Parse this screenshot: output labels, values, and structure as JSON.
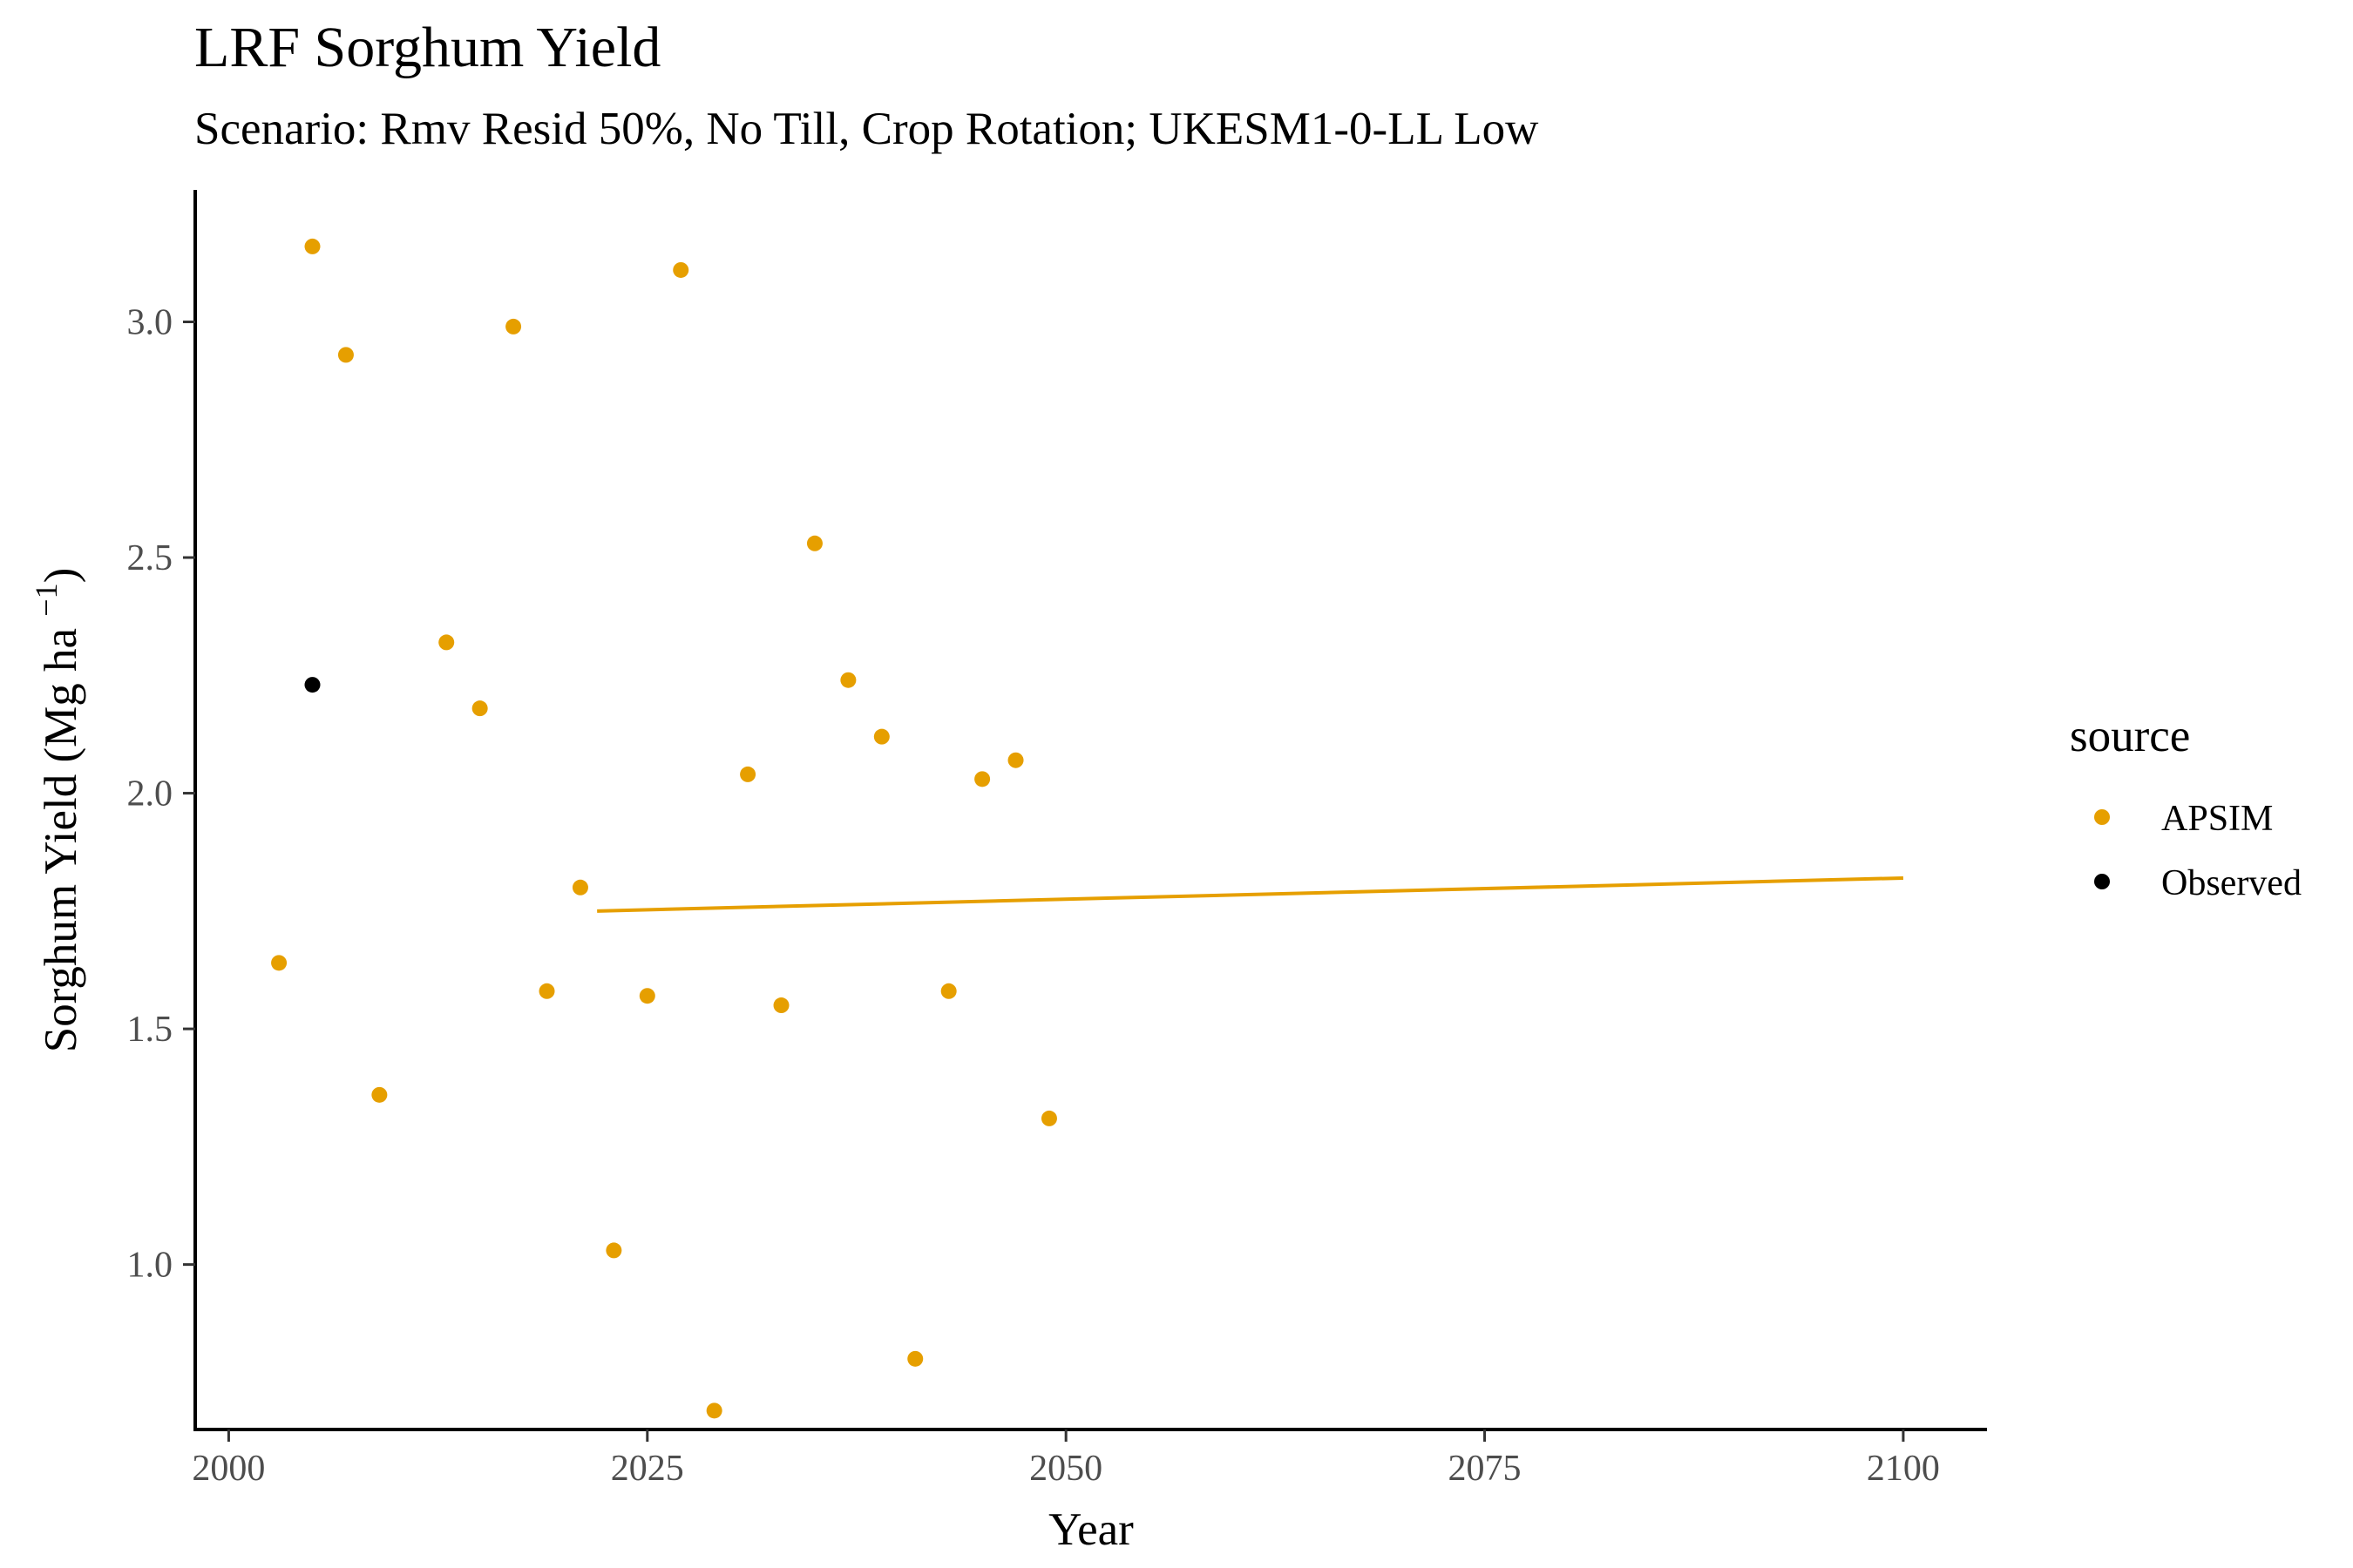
{
  "chart_data": {
    "type": "scatter",
    "title": "LRF Sorghum Yield",
    "subtitle": "Scenario: Rmv Resid 50%, No Till, Crop Rotation; UKESM1-0-LL Low",
    "xlabel": "Year",
    "ylabel_main": "Sorghum Yield (Mg ha ",
    "ylabel_sup": "−1",
    "ylabel_close": ")",
    "xlim": [
      1998,
      2105
    ],
    "ylim": [
      0.65,
      3.28
    ],
    "x_ticks": [
      2000,
      2025,
      2050,
      2075,
      2100
    ],
    "x_tick_labels": [
      "2000",
      "2025",
      "2050",
      "2075",
      "2100"
    ],
    "y_ticks": [
      1.0,
      1.5,
      2.0,
      2.5,
      3.0
    ],
    "y_tick_labels": [
      "1.0",
      "1.5",
      "2.0",
      "2.5",
      "3.0"
    ],
    "grid": false,
    "legend": {
      "title": "source",
      "placement": "right",
      "entries": [
        {
          "label": "APSIM",
          "color": "#E69F00"
        },
        {
          "label": "Observed",
          "color": "#000000"
        }
      ]
    },
    "series": [
      {
        "name": "APSIM",
        "color": "#E69F00",
        "points": [
          {
            "x": 2003,
            "y": 1.64
          },
          {
            "x": 2005,
            "y": 3.16
          },
          {
            "x": 2007,
            "y": 2.93
          },
          {
            "x": 2009,
            "y": 1.36
          },
          {
            "x": 2013,
            "y": 2.32
          },
          {
            "x": 2015,
            "y": 2.18
          },
          {
            "x": 2017,
            "y": 2.99
          },
          {
            "x": 2019,
            "y": 1.58
          },
          {
            "x": 2021,
            "y": 1.8
          },
          {
            "x": 2023,
            "y": 1.03
          },
          {
            "x": 2025,
            "y": 1.57
          },
          {
            "x": 2027,
            "y": 3.11
          },
          {
            "x": 2029,
            "y": 0.69
          },
          {
            "x": 2031,
            "y": 2.04
          },
          {
            "x": 2033,
            "y": 1.55
          },
          {
            "x": 2035,
            "y": 2.53
          },
          {
            "x": 2037,
            "y": 2.24
          },
          {
            "x": 2039,
            "y": 2.12
          },
          {
            "x": 2041,
            "y": 0.8
          },
          {
            "x": 2043,
            "y": 1.58
          },
          {
            "x": 2045,
            "y": 2.03
          },
          {
            "x": 2047,
            "y": 2.07
          },
          {
            "x": 2049,
            "y": 1.31
          }
        ]
      },
      {
        "name": "Observed",
        "color": "#000000",
        "points": [
          {
            "x": 2005,
            "y": 2.23
          }
        ]
      }
    ],
    "trend_line": {
      "series": "APSIM",
      "color": "#E69F00",
      "x": [
        2022,
        2100
      ],
      "y": [
        1.75,
        1.82
      ]
    }
  }
}
